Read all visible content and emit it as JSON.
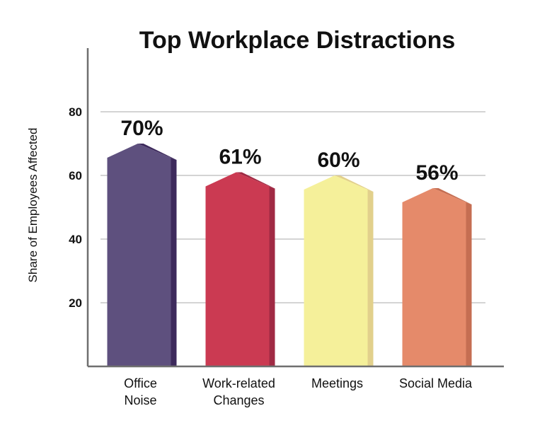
{
  "chart_data": {
    "type": "bar",
    "title": "Top Workplace Distractions",
    "ylabel": "Share of Employees Affected",
    "xlabel": "",
    "ylim": [
      0,
      90
    ],
    "yticks": [
      20,
      40,
      60,
      80
    ],
    "grid": true,
    "categories": [
      [
        "Office",
        "Noise"
      ],
      [
        "Work-related",
        "Changes"
      ],
      [
        "Meetings"
      ],
      [
        "Social Media"
      ]
    ],
    "values": [
      70,
      61,
      60,
      56
    ],
    "value_labels": [
      "70%",
      "61%",
      "60%",
      "56%"
    ],
    "colors": [
      "#5e507e",
      "#cb3a52",
      "#f5f09a",
      "#e58a6a"
    ],
    "side_colors": [
      "#3d2a5c",
      "#a02a44",
      "#e2d08c",
      "#c56e52"
    ]
  }
}
